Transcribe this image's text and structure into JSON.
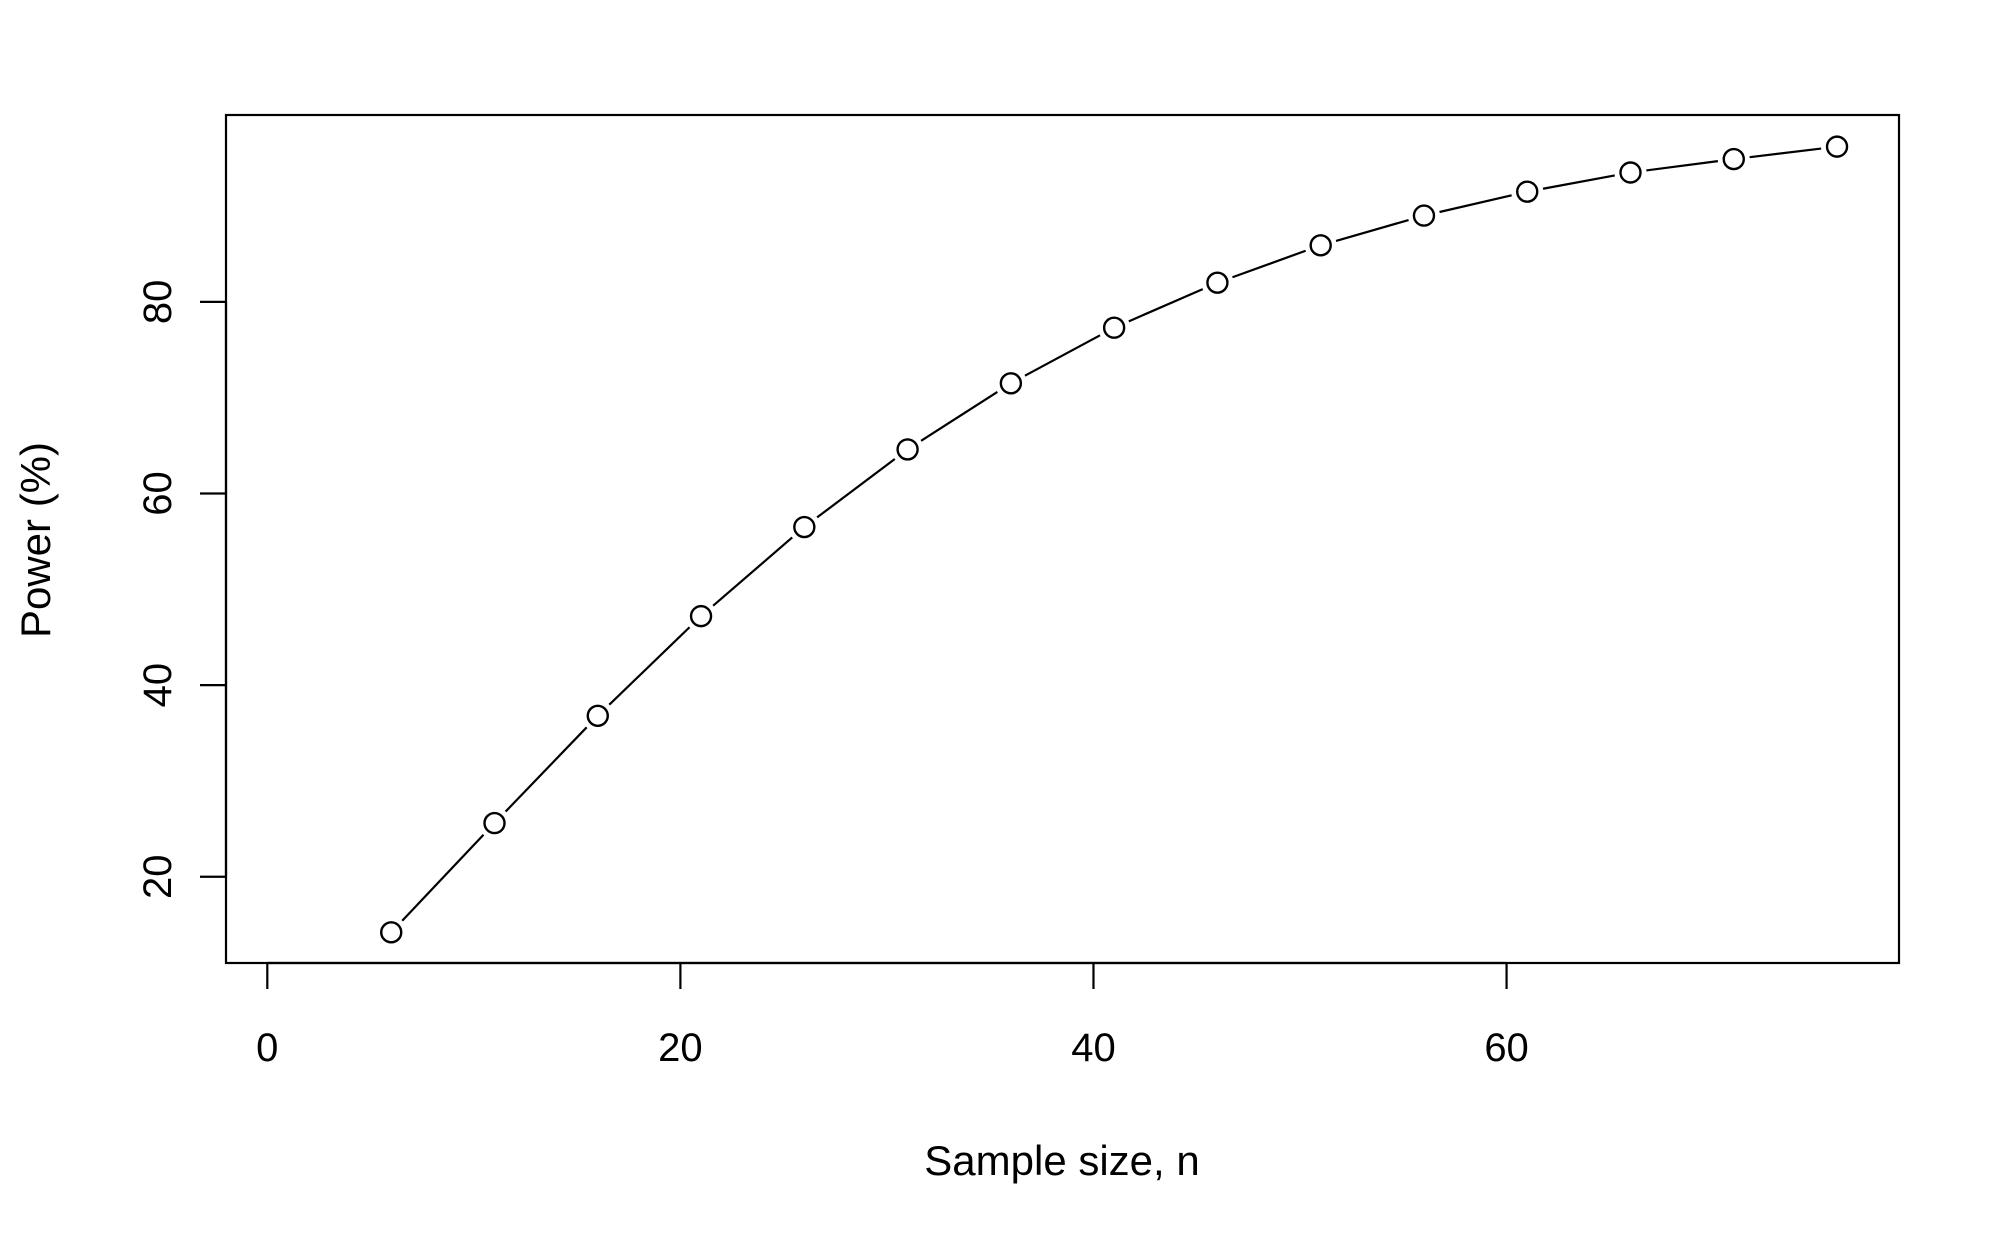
{
  "chart_data": {
    "type": "line",
    "title": "",
    "xlabel": "Sample size, n",
    "ylabel": "Power (%)",
    "xlim": [
      -2,
      79
    ],
    "ylim": [
      11,
      99.5
    ],
    "x_ticks": [
      0,
      20,
      40,
      60
    ],
    "y_ticks": [
      20,
      40,
      60,
      80
    ],
    "x_tick_labels": [
      "0",
      "20",
      "40",
      "60"
    ],
    "y_tick_labels": [
      "20",
      "40",
      "60",
      "80"
    ],
    "grid": false,
    "legend": "none",
    "marker": "open-circle",
    "line_style": "solid, gaps at points",
    "series": [
      {
        "x": [
          6,
          11,
          16,
          21,
          26,
          31,
          36,
          41,
          46,
          51,
          56,
          61,
          66,
          71,
          76
        ],
        "y": [
          14.2,
          25.6,
          36.8,
          47.2,
          56.5,
          64.6,
          71.5,
          77.3,
          82.0,
          85.9,
          89.0,
          91.5,
          93.5,
          94.9,
          96.2
        ]
      }
    ]
  }
}
